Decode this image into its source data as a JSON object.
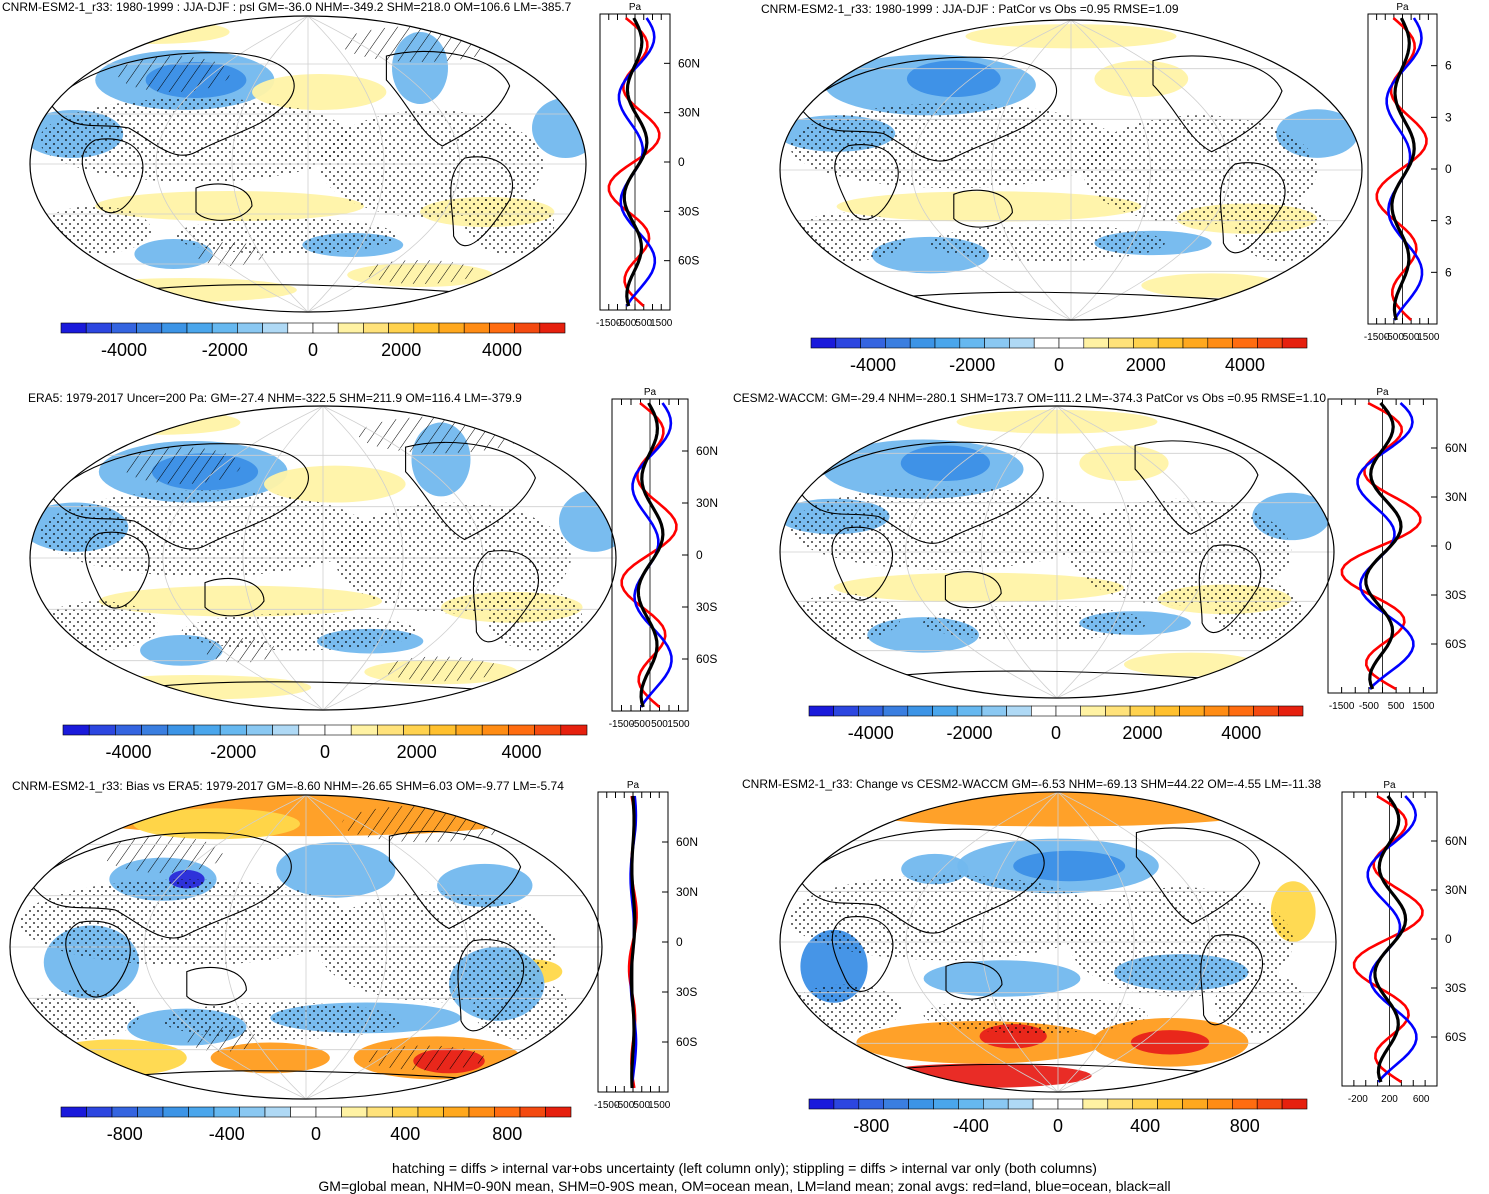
{
  "colors": {
    "blue_dark": "#2a2ad8",
    "blue_mid": "#3c8fe6",
    "blue_light": "#72b8ee",
    "blue_pale": "#b5dcf7",
    "yellow_pale": "#fff3a6",
    "yellow": "#ffd84a",
    "orange": "#ff9c1e",
    "red": "#e8211a",
    "dark_red": "#b80000",
    "land_line": "red",
    "ocean_line": "blue",
    "all_line": "black"
  },
  "colorbar_main": [
    "#1a1adb",
    "#2c46e0",
    "#3464e0",
    "#3a7ee0",
    "#3c94e6",
    "#4aa6ec",
    "#66b8f0",
    "#8ac8f2",
    "#afd9f5",
    "#ffffff",
    "#ffffff",
    "#fff2a3",
    "#ffe27a",
    "#ffd24e",
    "#ffc02e",
    "#ffa81e",
    "#ff8c14",
    "#ff6c10",
    "#f44a10",
    "#e6200e"
  ],
  "panels": [
    {
      "id": "p1",
      "title": "CNRM-ESM2-1_r33: 1980-1999 : JJA-DJF : psl GM=-36.0 NHM=-349.2 SHM=218.0 OM=106.6 LM=-385.7",
      "colorbar_ticks": [
        "-4000",
        "-2000",
        "0",
        "2000",
        "4000"
      ],
      "profile_ticks": [
        "-1500",
        "-500",
        "500",
        "1500"
      ],
      "profile_unit": "Pa",
      "lat_labels": [
        "60N",
        "30N",
        "0",
        "30S",
        "60S"
      ]
    },
    {
      "id": "p2",
      "title": "CNRM-ESM2-1_r33: 1980-1999 : JJA-DJF : PatCor vs Obs =0.95 RMSE=1.09",
      "colorbar_ticks": [
        "-4000",
        "-2000",
        "0",
        "2000",
        "4000"
      ],
      "profile_ticks": [
        "-1500",
        "-500",
        "500",
        "1500"
      ],
      "profile_unit": "Pa",
      "lat_labels": [
        "6",
        "3",
        "0",
        "3",
        "6"
      ]
    },
    {
      "id": "p3",
      "title": "ERA5: 1979-2017 Uncer=200 Pa: GM=-27.4 NHM=-322.5 SHM=211.9 OM=116.4 LM=-379.9",
      "colorbar_ticks": [
        "-4000",
        "-2000",
        "0",
        "2000",
        "4000"
      ],
      "profile_ticks": [
        "-1500",
        "-500",
        "500",
        "1500"
      ],
      "profile_unit": "Pa",
      "lat_labels": [
        "60N",
        "30N",
        "0",
        "30S",
        "60S"
      ]
    },
    {
      "id": "p4",
      "title": "CESM2-WACCM: GM=-29.4 NHM=-280.1 SHM=173.7 OM=111.2 LM=-374.3 PatCor vs Obs =0.95 RMSE=1.10",
      "colorbar_ticks": [
        "-4000",
        "-2000",
        "0",
        "2000",
        "4000"
      ],
      "profile_ticks": [
        "-1500",
        "-500",
        "500",
        "1500"
      ],
      "profile_unit": "Pa",
      "lat_labels": [
        "60N",
        "30N",
        "0",
        "30S",
        "60S"
      ]
    },
    {
      "id": "p5",
      "title": "CNRM-ESM2-1_r33: Bias vs ERA5: 1979-2017 GM=-8.60 NHM=-26.65 SHM=6.03 OM=-9.77 LM=-5.74",
      "colorbar_ticks": [
        "-800",
        "-400",
        "0",
        "400",
        "800"
      ],
      "profile_ticks": [
        "-1500",
        "-500",
        "500",
        "1500"
      ],
      "profile_unit": "Pa",
      "lat_labels": [
        "60N",
        "30N",
        "0",
        "30S",
        "60S"
      ]
    },
    {
      "id": "p6",
      "title": "CNRM-ESM2-1_r33: Change vs CESM2-WACCM GM=-6.53 NHM=-69.13 SHM=44.22 OM=-4.55 LM=-11.38",
      "colorbar_ticks": [
        "-800",
        "-400",
        "0",
        "400",
        "800"
      ],
      "profile_ticks": [
        "-200",
        "200",
        "600"
      ],
      "profile_unit": "Pa",
      "lat_labels": [
        "60N",
        "30N",
        "0",
        "30S",
        "60S"
      ]
    }
  ],
  "caption": {
    "line1": "hatching = diffs > internal var+obs uncertainty (left column only); stippling = diffs > internal var only (both columns)",
    "line2": "GM=global mean, NHM=0-90N mean, SHM=0-90S mean, OM=ocean mean, LM=land mean; zonal avgs: red=land, blue=ocean, black=all"
  }
}
